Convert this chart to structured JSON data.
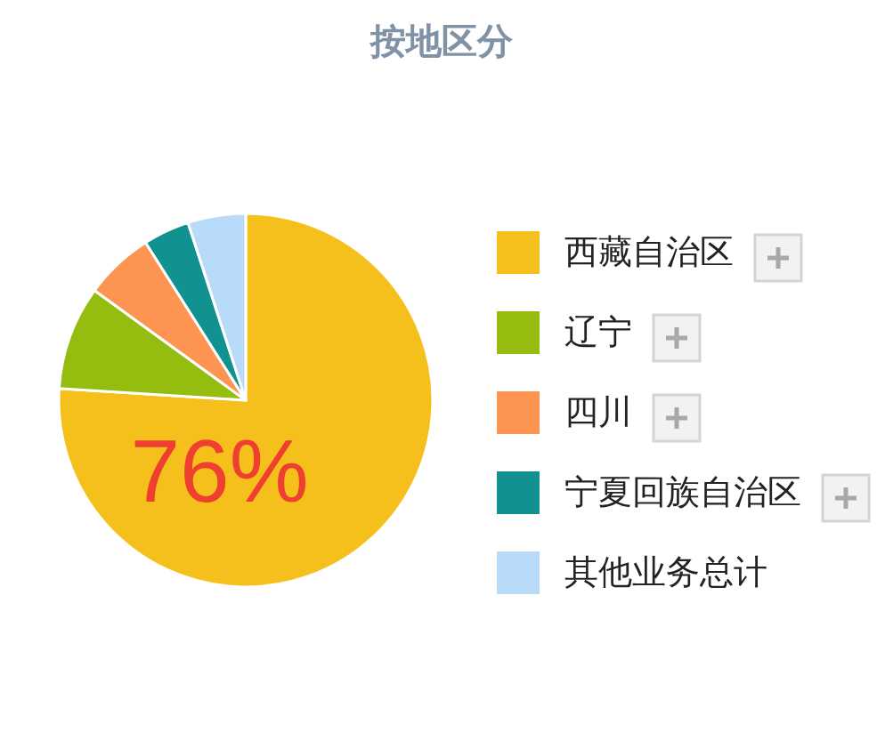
{
  "chart_data": {
    "type": "pie",
    "title": "按地区分",
    "categories": [
      "西藏自治区",
      "辽宁",
      "四川",
      "宁夏回族自治区",
      "其他业务总计"
    ],
    "values": [
      76,
      9,
      6,
      4,
      5
    ],
    "colors": [
      "#f6c01c",
      "#94bd10",
      "#fe9452",
      "#11918f",
      "#b7dbf8"
    ],
    "value_labels": [
      "76%",
      null,
      null,
      null,
      null
    ],
    "legend": "right"
  }
}
